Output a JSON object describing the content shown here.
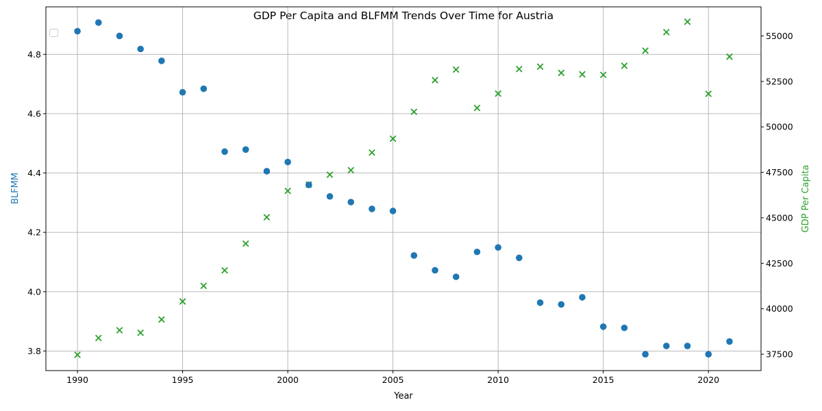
{
  "chart_data": {
    "type": "scatter",
    "title": "GDP Per Capita and BLFMM Trends Over Time for Austria",
    "xlabel": "Year",
    "ylabel_left": "BLFMM",
    "ylabel_right": "GDP Per Capita",
    "xlim": [
      1988.5,
      2022.5
    ],
    "ylim_left": [
      3.734,
      4.96
    ],
    "ylim_right": [
      36600,
      56600
    ],
    "xticks": [
      1990,
      1995,
      2000,
      2005,
      2010,
      2015,
      2020
    ],
    "yticks_left": [
      3.8,
      4.0,
      4.2,
      4.4,
      4.6,
      4.8
    ],
    "yticks_right": [
      37500,
      40000,
      42500,
      45000,
      47500,
      50000,
      52500,
      55000
    ],
    "grid": true,
    "legend": "upper-left-empty",
    "colors": {
      "blfmm": "#1f77b4",
      "gdp": "#2ca02c"
    },
    "x": [
      1990,
      1991,
      1992,
      1993,
      1994,
      1995,
      1996,
      1997,
      1998,
      1999,
      2000,
      2001,
      2002,
      2003,
      2004,
      2005,
      2006,
      2007,
      2008,
      2009,
      2010,
      2011,
      2012,
      2013,
      2014,
      2015,
      2016,
      2017,
      2018,
      2019,
      2020,
      2021
    ],
    "series": [
      {
        "key": "blfmm",
        "axis": "left",
        "marker": "circle",
        "values": [
          4.878,
          4.907,
          4.862,
          4.818,
          4.778,
          4.672,
          4.684,
          4.472,
          4.479,
          4.406,
          4.437,
          4.36,
          4.321,
          4.302,
          4.279,
          4.272,
          4.122,
          4.072,
          4.05,
          4.134,
          4.149,
          4.114,
          3.963,
          3.957,
          3.981,
          3.882,
          3.878,
          3.789,
          3.817,
          3.817,
          3.789,
          3.832
        ]
      },
      {
        "key": "gdp",
        "axis": "right",
        "marker": "x",
        "values": [
          37470,
          38390,
          38820,
          38680,
          39410,
          40400,
          41260,
          42110,
          43580,
          45030,
          46480,
          46830,
          47370,
          47620,
          48590,
          49350,
          50830,
          52570,
          53150,
          51040,
          51830,
          53180,
          53310,
          52970,
          52890,
          52860,
          53360,
          54190,
          55210,
          55780,
          51820,
          53860
        ]
      }
    ]
  }
}
